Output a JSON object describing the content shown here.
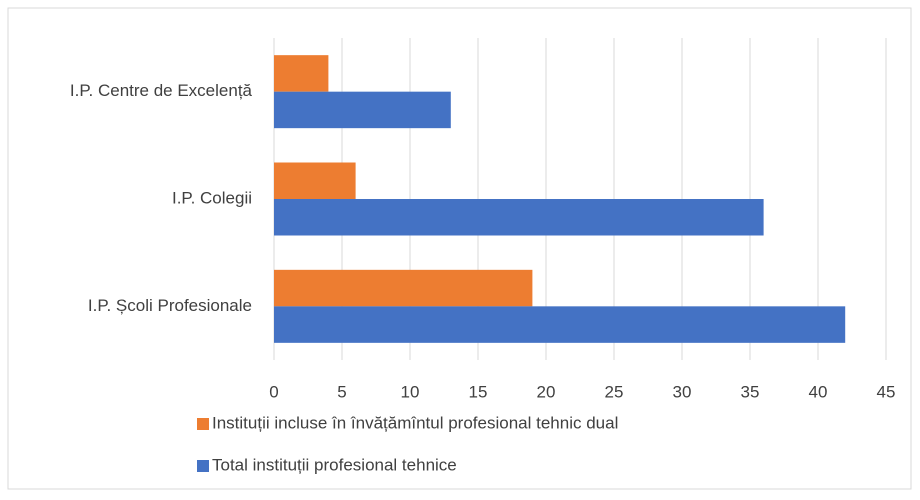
{
  "chart_data": {
    "type": "bar",
    "orientation": "horizontal",
    "categories": [
      "I.P. Centre de Excelență",
      "I.P. Colegii",
      "I.P. Școli Profesionale"
    ],
    "series": [
      {
        "name": "Instituții incluse în învățămîntul profesional tehnic dual",
        "color": "#ed7d31",
        "values": [
          4,
          6,
          19
        ]
      },
      {
        "name": "Total instituții profesional tehnice",
        "color": "#4472c4",
        "values": [
          13,
          36,
          42
        ]
      }
    ],
    "xlim": [
      0,
      45
    ],
    "xticks": [
      0,
      5,
      10,
      15,
      20,
      25,
      30,
      35,
      40,
      45
    ],
    "grid": true,
    "legend": "bottom"
  }
}
